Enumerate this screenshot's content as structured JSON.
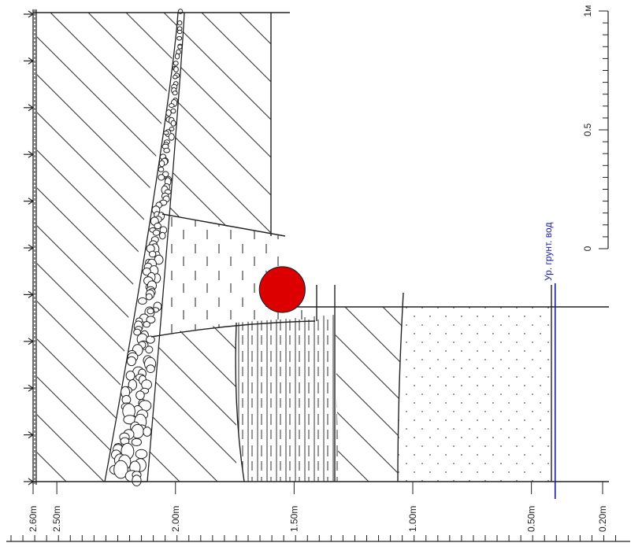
{
  "depth_scale": {
    "labels": [
      "2.60m",
      "2.50m",
      "2.00m",
      "1.50m",
      "1.00m",
      "0.50m",
      "0.20m"
    ],
    "values": [
      2.6,
      2.5,
      2.0,
      1.5,
      1.0,
      0.5,
      0.2
    ]
  },
  "side_scale": {
    "labels": [
      "1м",
      "0.5",
      "0"
    ],
    "values": [
      1,
      0.5,
      0
    ]
  },
  "groundwater": {
    "label": "Ур. грунт. вод",
    "depth": 0.4,
    "color": "#1a1aa8"
  },
  "marker": {
    "color": "#dd0000",
    "depth": 1.55
  },
  "colors": {
    "line": "#222222",
    "marker": "#dd0000",
    "groundwater": "#1a1aa8"
  }
}
